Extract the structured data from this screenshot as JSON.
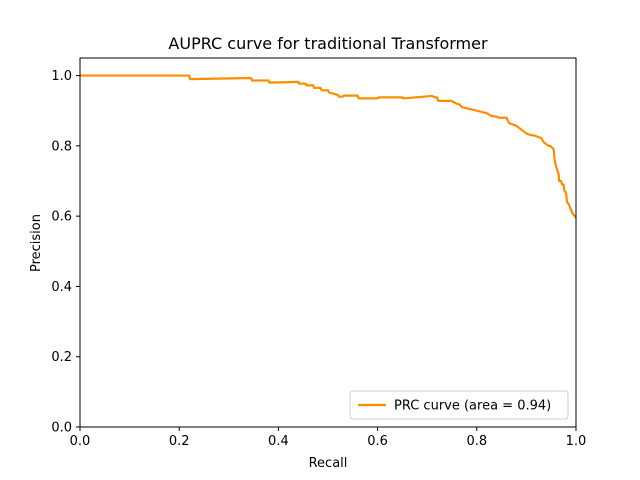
{
  "chart_data": {
    "type": "line",
    "title": "AUPRC curve for traditional Transformer",
    "xlabel": "Recall",
    "ylabel": "Precision",
    "xlim": [
      0.0,
      1.0
    ],
    "ylim": [
      0.0,
      1.05
    ],
    "xticks": [
      0.0,
      0.2,
      0.4,
      0.6,
      0.8,
      1.0
    ],
    "xtick_labels": [
      "0.0",
      "0.2",
      "0.4",
      "0.6",
      "0.8",
      "1.0"
    ],
    "yticks": [
      0.0,
      0.2,
      0.4,
      0.6,
      0.8,
      1.0
    ],
    "ytick_labels": [
      "0.0",
      "0.2",
      "0.4",
      "0.6",
      "0.8",
      "1.0"
    ],
    "grid": false,
    "legend_position": "lower-right",
    "series": [
      {
        "name": "PRC curve (area = 0.94)",
        "color": "#ff8c00",
        "x": [
          0.0,
          0.22,
          0.222,
          0.345,
          0.347,
          0.38,
          0.382,
          0.44,
          0.442,
          0.455,
          0.457,
          0.47,
          0.472,
          0.485,
          0.487,
          0.5,
          0.502,
          0.52,
          0.522,
          0.53,
          0.532,
          0.56,
          0.562,
          0.6,
          0.602,
          0.65,
          0.652,
          0.71,
          0.715,
          0.72,
          0.722,
          0.75,
          0.752,
          0.76,
          0.765,
          0.77,
          0.8,
          0.82,
          0.83,
          0.84,
          0.845,
          0.86,
          0.865,
          0.87,
          0.88,
          0.9,
          0.91,
          0.915,
          0.93,
          0.935,
          0.94,
          0.945,
          0.948,
          0.955,
          0.957,
          0.96,
          0.965,
          0.966,
          0.97,
          0.972,
          0.975,
          0.976,
          0.98,
          0.982,
          0.985,
          0.99,
          0.992,
          0.995,
          1.0
        ],
        "y": [
          1.0,
          1.0,
          0.99,
          0.993,
          0.986,
          0.986,
          0.98,
          0.982,
          0.977,
          0.977,
          0.972,
          0.972,
          0.965,
          0.965,
          0.958,
          0.958,
          0.952,
          0.945,
          0.94,
          0.94,
          0.943,
          0.943,
          0.935,
          0.935,
          0.938,
          0.938,
          0.935,
          0.942,
          0.938,
          0.938,
          0.928,
          0.928,
          0.925,
          0.92,
          0.918,
          0.91,
          0.9,
          0.893,
          0.885,
          0.883,
          0.88,
          0.88,
          0.865,
          0.862,
          0.857,
          0.835,
          0.83,
          0.83,
          0.822,
          0.81,
          0.805,
          0.8,
          0.8,
          0.79,
          0.76,
          0.74,
          0.72,
          0.7,
          0.7,
          0.69,
          0.69,
          0.675,
          0.665,
          0.64,
          0.635,
          0.618,
          0.61,
          0.605,
          0.595
        ]
      }
    ]
  }
}
